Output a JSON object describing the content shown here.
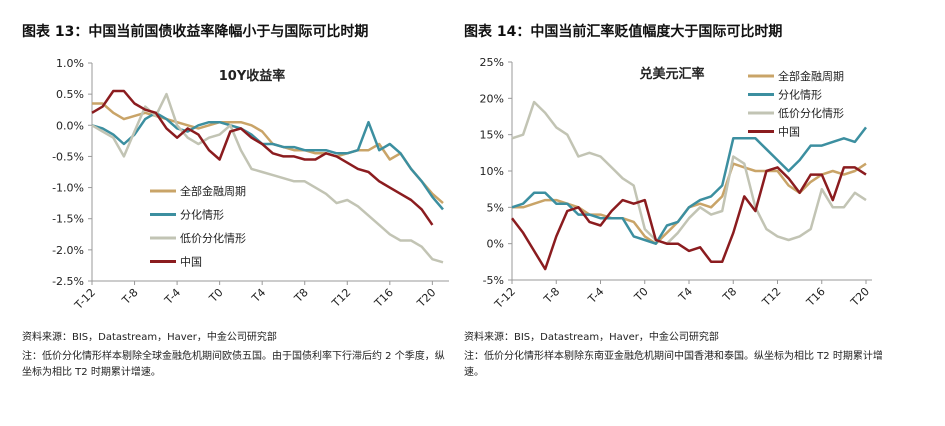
{
  "chart_data": [
    {
      "type": "line",
      "title": "图表 13：中国当前国债收益率降幅小于与国际可比时期",
      "annotation": "10Y收益率",
      "source": "资料来源：BIS，Datastream，Haver，中金公司研究部",
      "note": "注：低价分化情形样本剔除全球金融危机期间欧债五国。由于国债利率下行滞后约 2 个季度，纵坐标为相比 T2 时期累计增速。",
      "categories": [
        "T-12",
        null,
        null,
        null,
        "T-8",
        null,
        null,
        null,
        "T-4",
        null,
        null,
        null,
        "T0",
        null,
        null,
        null,
        "T4",
        null,
        null,
        null,
        "T8",
        null,
        null,
        null,
        "T12",
        null,
        null,
        null,
        "T16",
        null,
        null,
        null,
        "T20",
        null
      ],
      "ylim": [
        -2.5,
        1.0
      ],
      "yticks": [
        {
          "value": -2.5,
          "label": "-2.5%"
        },
        {
          "value": -2.0,
          "label": "-2.0%"
        },
        {
          "value": -1.5,
          "label": "-1.5%"
        },
        {
          "value": -1.0,
          "label": "-1.0%"
        },
        {
          "value": -0.5,
          "label": "-0.5%"
        },
        {
          "value": 0,
          "label": "0.0%"
        },
        {
          "value": 0.5,
          "label": "0.5%"
        },
        {
          "value": 1.0,
          "label": "1.0%"
        }
      ],
      "legend": "lower left",
      "series": [
        {
          "name": "全部金融周期",
          "color": "#c9a468",
          "values": [
            0.35,
            0.35,
            0.2,
            0.1,
            0.15,
            0.2,
            0.15,
            0.1,
            0.05,
            0,
            -0.05,
            0,
            0.05,
            0.05,
            0.05,
            0,
            -0.1,
            -0.3,
            -0.35,
            -0.4,
            -0.4,
            -0.45,
            -0.45,
            -0.5,
            -0.45,
            -0.4,
            -0.4,
            -0.3,
            -0.55,
            -0.45,
            -0.7,
            -0.9,
            -1.1,
            -1.25
          ]
        },
        {
          "name": "分化情形",
          "color": "#3c8fa0",
          "values": [
            0,
            -0.05,
            -0.15,
            -0.3,
            -0.15,
            0.1,
            0.2,
            0.1,
            -0.05,
            -0.1,
            0,
            0.05,
            0.05,
            0,
            -0.05,
            -0.15,
            -0.3,
            -0.3,
            -0.35,
            -0.35,
            -0.4,
            -0.4,
            -0.4,
            -0.45,
            -0.45,
            -0.4,
            0.05,
            -0.4,
            -0.3,
            -0.45,
            -0.7,
            -0.9,
            -1.15,
            -1.35
          ]
        },
        {
          "name": "低价分化情形",
          "color": "#c2c4b4",
          "values": [
            0,
            -0.1,
            -0.2,
            -0.5,
            -0.1,
            0.3,
            0.15,
            0.5,
            0,
            -0.2,
            -0.3,
            -0.2,
            -0.15,
            0,
            -0.4,
            -0.7,
            -0.75,
            -0.8,
            -0.85,
            -0.9,
            -0.9,
            -1.0,
            -1.1,
            -1.25,
            -1.2,
            -1.3,
            -1.45,
            -1.6,
            -1.75,
            -1.85,
            -1.85,
            -1.95,
            -2.15,
            -2.2
          ]
        },
        {
          "name": "中国",
          "color": "#8b1c1f",
          "values": [
            0.2,
            0.3,
            0.55,
            0.55,
            0.35,
            0.25,
            0.2,
            -0.05,
            -0.2,
            -0.05,
            -0.15,
            -0.4,
            -0.55,
            -0.1,
            -0.05,
            -0.2,
            -0.3,
            -0.45,
            -0.5,
            -0.5,
            -0.55,
            -0.55,
            -0.45,
            -0.5,
            -0.6,
            -0.7,
            -0.75,
            -0.9,
            -1.0,
            -1.1,
            -1.2,
            -1.35,
            -1.6,
            null
          ]
        }
      ]
    },
    {
      "type": "line",
      "title": "图表 14：中国当前汇率贬值幅度大于国际可比时期",
      "annotation": "兑美元汇率",
      "source": "资料来源：BIS，Datastream，Haver，中金公司研究部",
      "note": "注：低价分化情形样本剔除东南亚金融危机期间中国香港和泰国。纵坐标为相比 T2 时期累计增速。",
      "categories": [
        "T-12",
        null,
        null,
        null,
        "T-8",
        null,
        null,
        null,
        "T-4",
        null,
        null,
        null,
        "T0",
        null,
        null,
        null,
        "T4",
        null,
        null,
        null,
        "T8",
        null,
        null,
        null,
        "T12",
        null,
        null,
        null,
        "T16",
        null,
        null,
        null,
        "T20"
      ],
      "ylim": [
        -5,
        25
      ],
      "yticks": [
        {
          "value": -5,
          "label": "-5%"
        },
        {
          "value": 0,
          "label": "0%"
        },
        {
          "value": 5,
          "label": "5%"
        },
        {
          "value": 10,
          "label": "10%"
        },
        {
          "value": 15,
          "label": "15%"
        },
        {
          "value": 20,
          "label": "20%"
        },
        {
          "value": 25,
          "label": "25%"
        }
      ],
      "legend": "upper right",
      "series": [
        {
          "name": "全部金融周期",
          "color": "#c9a468",
          "values": [
            5,
            5,
            5.5,
            6,
            6,
            5.5,
            5,
            4,
            4,
            3.5,
            3.5,
            3,
            1,
            0,
            1.5,
            3,
            5,
            5.5,
            5,
            6.5,
            11,
            10.5,
            10,
            10,
            10,
            8,
            7,
            8.5,
            9.5,
            10,
            9.5,
            10,
            11
          ]
        },
        {
          "name": "分化情形",
          "color": "#3c8fa0",
          "values": [
            5,
            5.5,
            7,
            7,
            5.5,
            5.5,
            4,
            4,
            3.5,
            3.5,
            3.5,
            1,
            0.5,
            0,
            2.5,
            3,
            5,
            6,
            6.5,
            8,
            14.5,
            14.5,
            14.5,
            13,
            11.5,
            10,
            11.5,
            13.5,
            13.5,
            14,
            14.5,
            14,
            16
          ]
        },
        {
          "name": "低价分化情形",
          "color": "#c2c4b4",
          "values": [
            14.5,
            15,
            19.5,
            18,
            16,
            15,
            12,
            12.5,
            12,
            10.5,
            9,
            8,
            2,
            0.5,
            0,
            1.5,
            3.5,
            5,
            4,
            4.5,
            12,
            11,
            5,
            2,
            1,
            0.5,
            1,
            2,
            7.5,
            5,
            5,
            7,
            6
          ]
        },
        {
          "name": "中国",
          "color": "#8b1c1f",
          "values": [
            3.5,
            1.5,
            -1,
            -3.5,
            1,
            4.5,
            5,
            3,
            2.5,
            4.5,
            6,
            5.5,
            6,
            0.5,
            0,
            0,
            -1,
            -0.5,
            -2.5,
            -2.5,
            1.5,
            6.5,
            4.5,
            10,
            10.5,
            9,
            7,
            9.5,
            9.5,
            6,
            10.5,
            10.5,
            9.5
          ]
        }
      ]
    }
  ]
}
